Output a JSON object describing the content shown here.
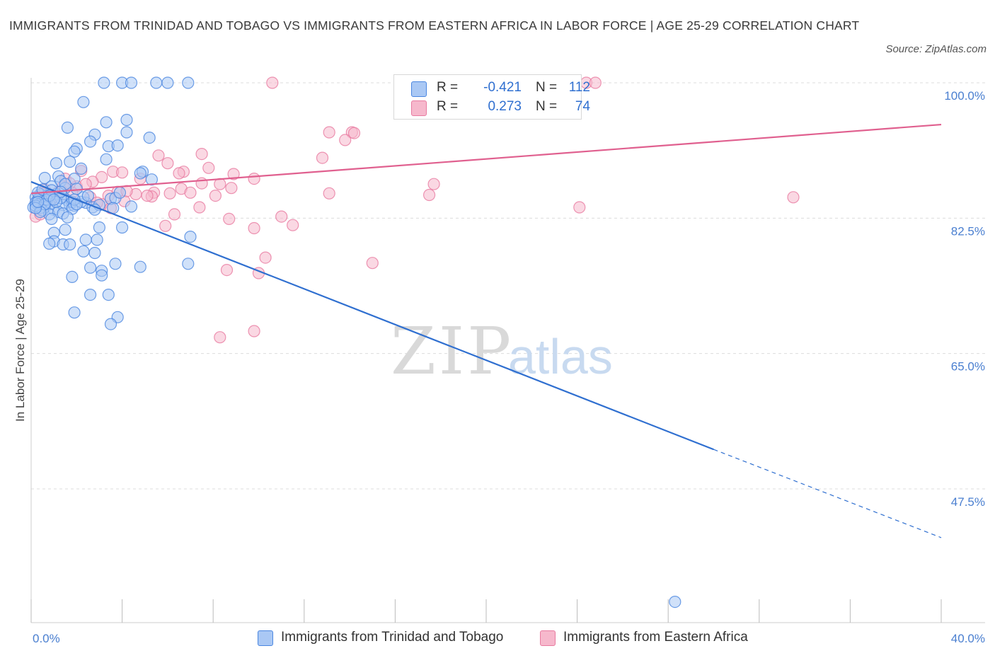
{
  "header": {
    "title": "IMMIGRANTS FROM TRINIDAD AND TOBAGO VS IMMIGRANTS FROM EASTERN AFRICA IN LABOR FORCE | AGE 25-29 CORRELATION CHART",
    "source": "Source: ZipAtlas.com"
  },
  "watermark": {
    "zip": "ZIP",
    "atlas": "atlas"
  },
  "legend": {
    "rows": [
      {
        "r_label": "R =",
        "r_value": "-0.421",
        "n_label": "N =",
        "n_value": "112",
        "color": "#aac8f4"
      },
      {
        "r_label": "R =",
        "r_value": "0.273",
        "n_label": "N =",
        "n_value": "74",
        "color": "#f6b8cc"
      }
    ]
  },
  "bottom_legend": {
    "items": [
      {
        "label": "Immigrants from Trinidad and Tobago",
        "color": "#aac8f4"
      },
      {
        "label": "Immigrants from Eastern Africa",
        "color": "#f6b8cc"
      }
    ]
  },
  "chart_data": {
    "type": "scatter",
    "ylabel": "In Labor Force | Age 25-29",
    "xlim": [
      0,
      40
    ],
    "ylim": [
      30,
      102
    ],
    "x_tick_labels": [
      "0.0%",
      "40.0%"
    ],
    "y_ticks": [
      {
        "value": 100.0,
        "label": "100.0%"
      },
      {
        "value": 82.5,
        "label": "82.5%"
      },
      {
        "value": 65.0,
        "label": "65.0%"
      },
      {
        "value": 47.5,
        "label": "47.5%"
      }
    ],
    "grid": "horizontal-dashed",
    "series": [
      {
        "name": "Immigrants from Trinidad and Tobago",
        "color": "#4a86e0",
        "fill": "#aac8f4",
        "trend": {
          "x1": 0,
          "y1": 87.2,
          "x2": 30,
          "y2": 52.6,
          "dash_to_x": 40,
          "dash_to_y": 41.2,
          "color": "#2f6fd0"
        },
        "points": [
          [
            3.2,
            100.0
          ],
          [
            4.0,
            100.0
          ],
          [
            4.4,
            100.0
          ],
          [
            5.5,
            100.0
          ],
          [
            6.0,
            100.0
          ],
          [
            6.9,
            100.0
          ],
          [
            2.3,
            97.5
          ],
          [
            3.3,
            94.9
          ],
          [
            4.2,
            95.2
          ],
          [
            1.6,
            94.2
          ],
          [
            4.2,
            93.6
          ],
          [
            2.8,
            93.3
          ],
          [
            2.6,
            92.4
          ],
          [
            5.2,
            92.9
          ],
          [
            2.0,
            91.5
          ],
          [
            3.4,
            91.8
          ],
          [
            3.8,
            91.9
          ],
          [
            1.9,
            91.1
          ],
          [
            3.3,
            90.1
          ],
          [
            1.1,
            89.6
          ],
          [
            1.7,
            89.8
          ],
          [
            2.2,
            88.9
          ],
          [
            4.9,
            88.5
          ],
          [
            1.2,
            87.9
          ],
          [
            1.9,
            87.6
          ],
          [
            0.6,
            87.7
          ],
          [
            4.8,
            88.3
          ],
          [
            1.3,
            87.3
          ],
          [
            0.9,
            86.6
          ],
          [
            1.5,
            86.4
          ],
          [
            5.3,
            87.5
          ],
          [
            0.4,
            85.6
          ],
          [
            0.7,
            85.4
          ],
          [
            0.2,
            85.2
          ],
          [
            0.9,
            85.0
          ],
          [
            1.1,
            85.6
          ],
          [
            1.4,
            85.3
          ],
          [
            0.3,
            84.9
          ],
          [
            0.5,
            84.7
          ],
          [
            1.6,
            84.8
          ],
          [
            0.8,
            84.3
          ],
          [
            0.3,
            84.2
          ],
          [
            1.7,
            84.2
          ],
          [
            2.4,
            84.5
          ],
          [
            0.6,
            83.9
          ],
          [
            1.0,
            83.6
          ],
          [
            0.2,
            84.5
          ],
          [
            1.9,
            84.1
          ],
          [
            0.4,
            83.8
          ],
          [
            1.8,
            84.6
          ],
          [
            0.1,
            83.9
          ],
          [
            1.4,
            84.2
          ],
          [
            2.7,
            83.9
          ],
          [
            0.5,
            83.5
          ],
          [
            0.8,
            83.0
          ],
          [
            1.2,
            83.3
          ],
          [
            0.2,
            84.1
          ],
          [
            0.7,
            84.9
          ],
          [
            1.3,
            85.1
          ],
          [
            3.5,
            85.0
          ],
          [
            3.0,
            84.2
          ],
          [
            0.3,
            85.8
          ],
          [
            0.9,
            86.1
          ],
          [
            1.5,
            86.9
          ],
          [
            2.0,
            86.3
          ],
          [
            4.4,
            84.0
          ],
          [
            3.7,
            85.1
          ],
          [
            2.2,
            84.6
          ],
          [
            0.6,
            84.3
          ],
          [
            1.1,
            84.6
          ],
          [
            1.8,
            83.7
          ],
          [
            0.4,
            83.3
          ],
          [
            0.9,
            82.4
          ],
          [
            1.4,
            83.1
          ],
          [
            2.3,
            85.2
          ],
          [
            0.5,
            86.2
          ],
          [
            1.6,
            82.6
          ],
          [
            2.8,
            83.6
          ],
          [
            0.2,
            83.8
          ],
          [
            1.9,
            84.9
          ],
          [
            3.9,
            85.8
          ],
          [
            1.3,
            85.9
          ],
          [
            0.8,
            85.4
          ],
          [
            0.3,
            84.6
          ],
          [
            1.0,
            84.9
          ],
          [
            2.0,
            84.3
          ],
          [
            3.6,
            83.8
          ],
          [
            2.5,
            85.4
          ],
          [
            1.5,
            81.0
          ],
          [
            3.0,
            81.3
          ],
          [
            4.0,
            81.3
          ],
          [
            1.0,
            80.6
          ],
          [
            1.0,
            79.5
          ],
          [
            2.4,
            79.7
          ],
          [
            0.8,
            79.2
          ],
          [
            1.4,
            79.1
          ],
          [
            1.7,
            79.1
          ],
          [
            2.9,
            79.7
          ],
          [
            7.0,
            80.1
          ],
          [
            2.3,
            78.2
          ],
          [
            2.8,
            78.0
          ],
          [
            3.7,
            76.6
          ],
          [
            2.6,
            76.1
          ],
          [
            3.1,
            75.7
          ],
          [
            4.8,
            76.2
          ],
          [
            6.9,
            76.6
          ],
          [
            3.1,
            75.1
          ],
          [
            1.8,
            74.9
          ],
          [
            2.6,
            72.6
          ],
          [
            3.4,
            72.6
          ],
          [
            1.9,
            70.3
          ],
          [
            3.8,
            69.7
          ],
          [
            3.5,
            68.8
          ],
          [
            28.3,
            32.9
          ]
        ]
      },
      {
        "name": "Immigrants from Eastern Africa",
        "color": "#e87aa0",
        "fill": "#f6b8cc",
        "trend": {
          "x1": 0,
          "y1": 85.7,
          "x2": 40,
          "y2": 94.6,
          "color": "#e0608f"
        },
        "points": [
          [
            10.6,
            100.0
          ],
          [
            23.3,
            100.0
          ],
          [
            24.4,
            100.0
          ],
          [
            24.8,
            100.0
          ],
          [
            13.1,
            93.6
          ],
          [
            14.1,
            93.6
          ],
          [
            14.2,
            93.5
          ],
          [
            13.8,
            92.6
          ],
          [
            7.5,
            90.8
          ],
          [
            5.6,
            90.6
          ],
          [
            12.8,
            90.3
          ],
          [
            6.0,
            89.6
          ],
          [
            7.8,
            89.0
          ],
          [
            2.2,
            88.6
          ],
          [
            3.6,
            88.5
          ],
          [
            4.0,
            88.4
          ],
          [
            6.7,
            88.5
          ],
          [
            8.9,
            88.2
          ],
          [
            4.8,
            87.6
          ],
          [
            3.1,
            87.8
          ],
          [
            9.8,
            87.6
          ],
          [
            2.7,
            87.2
          ],
          [
            1.5,
            87.6
          ],
          [
            7.5,
            87.0
          ],
          [
            8.3,
            86.9
          ],
          [
            17.7,
            86.9
          ],
          [
            2.0,
            86.6
          ],
          [
            1.4,
            86.6
          ],
          [
            8.8,
            86.4
          ],
          [
            6.6,
            86.3
          ],
          [
            3.8,
            85.9
          ],
          [
            0.6,
            86.2
          ],
          [
            5.4,
            85.8
          ],
          [
            4.6,
            85.6
          ],
          [
            6.1,
            85.7
          ],
          [
            17.5,
            85.5
          ],
          [
            3.4,
            85.4
          ],
          [
            13.1,
            85.7
          ],
          [
            8.1,
            85.4
          ],
          [
            5.3,
            85.3
          ],
          [
            33.5,
            85.2
          ],
          [
            1.2,
            85.9
          ],
          [
            2.6,
            85.2
          ],
          [
            0.9,
            84.9
          ],
          [
            0.5,
            85.7
          ],
          [
            4.1,
            84.7
          ],
          [
            5.1,
            85.4
          ],
          [
            0.3,
            84.8
          ],
          [
            3.1,
            84.3
          ],
          [
            1.8,
            85.8
          ],
          [
            7.4,
            83.9
          ],
          [
            24.1,
            83.9
          ],
          [
            6.3,
            83.0
          ],
          [
            0.2,
            82.7
          ],
          [
            11.0,
            82.7
          ],
          [
            8.7,
            82.4
          ],
          [
            9.8,
            81.2
          ],
          [
            5.9,
            81.5
          ],
          [
            10.3,
            77.4
          ],
          [
            15.0,
            76.7
          ],
          [
            8.6,
            75.8
          ],
          [
            10.0,
            75.4
          ],
          [
            8.3,
            67.1
          ],
          [
            9.8,
            67.9
          ],
          [
            0.4,
            83.0
          ],
          [
            1.0,
            85.3
          ],
          [
            2.4,
            86.9
          ],
          [
            6.5,
            88.3
          ],
          [
            4.2,
            86.0
          ],
          [
            7.0,
            85.8
          ],
          [
            2.9,
            84.5
          ],
          [
            1.7,
            87.0
          ],
          [
            3.5,
            83.8
          ],
          [
            11.5,
            81.6
          ]
        ]
      }
    ]
  }
}
